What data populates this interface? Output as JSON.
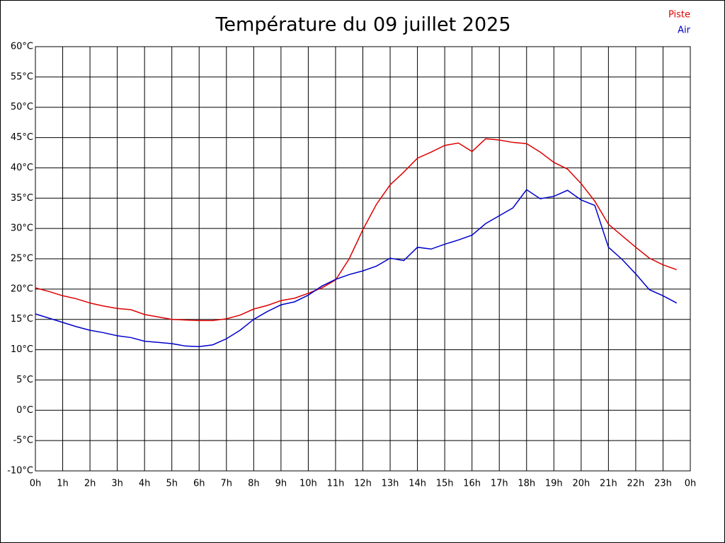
{
  "chart_data": {
    "type": "line",
    "title": "Température du 09 juillet 2025",
    "x": [
      0,
      0.5,
      1,
      1.5,
      2,
      2.5,
      3,
      3.5,
      4,
      4.5,
      5,
      5.5,
      6,
      6.5,
      7,
      7.5,
      8,
      8.5,
      9,
      9.5,
      10,
      10.5,
      11,
      11.5,
      12,
      12.5,
      13,
      13.5,
      14,
      14.5,
      15,
      15.5,
      16,
      16.5,
      17,
      17.5,
      18,
      18.5,
      19,
      19.5,
      20,
      20.5,
      21,
      21.5,
      22,
      22.5,
      23,
      23.5
    ],
    "series": [
      {
        "name": "Piste",
        "color": "#dd0000",
        "values": [
          20.2,
          19.6,
          18.9,
          18.4,
          17.7,
          17.2,
          16.8,
          16.6,
          15.8,
          15.4,
          15.0,
          14.9,
          14.8,
          14.8,
          15.1,
          15.7,
          16.7,
          17.3,
          18.1,
          18.5,
          19.3,
          20.2,
          21.5,
          25.0,
          29.8,
          34.0,
          37.2,
          39.3,
          41.6,
          42.6,
          43.7,
          44.1,
          42.7,
          44.8,
          44.6,
          44.2,
          44.0,
          42.6,
          40.9,
          39.8,
          37.4,
          34.5,
          30.7,
          28.8,
          26.9,
          25.1,
          24.0,
          23.2
        ]
      },
      {
        "name": "Air",
        "color": "#0000cc",
        "values": [
          15.9,
          15.2,
          14.5,
          13.8,
          13.2,
          12.8,
          12.3,
          12.0,
          11.4,
          11.2,
          11.0,
          10.6,
          10.5,
          10.8,
          11.8,
          13.2,
          15.0,
          16.3,
          17.4,
          17.9,
          19.0,
          20.5,
          21.6,
          22.4,
          23.0,
          23.8,
          25.1,
          24.7,
          26.9,
          26.6,
          27.4,
          28.1,
          28.9,
          30.8,
          32.1,
          33.4,
          36.4,
          34.9,
          35.3,
          36.3,
          34.7,
          33.8,
          26.9,
          24.9,
          22.5,
          19.9,
          18.9,
          17.7
        ]
      }
    ],
    "xlim": [
      0,
      24
    ],
    "xticks": [
      {
        "value": 0,
        "label": "0h"
      },
      {
        "value": 1,
        "label": "1h"
      },
      {
        "value": 2,
        "label": "2h"
      },
      {
        "value": 3,
        "label": "3h"
      },
      {
        "value": 4,
        "label": "4h"
      },
      {
        "value": 5,
        "label": "5h"
      },
      {
        "value": 6,
        "label": "6h"
      },
      {
        "value": 7,
        "label": "7h"
      },
      {
        "value": 8,
        "label": "8h"
      },
      {
        "value": 9,
        "label": "9h"
      },
      {
        "value": 10,
        "label": "10h"
      },
      {
        "value": 11,
        "label": "11h"
      },
      {
        "value": 12,
        "label": "12h"
      },
      {
        "value": 13,
        "label": "13h"
      },
      {
        "value": 14,
        "label": "14h"
      },
      {
        "value": 15,
        "label": "15h"
      },
      {
        "value": 16,
        "label": "16h"
      },
      {
        "value": 17,
        "label": "17h"
      },
      {
        "value": 18,
        "label": "18h"
      },
      {
        "value": 19,
        "label": "19h"
      },
      {
        "value": 20,
        "label": "20h"
      },
      {
        "value": 21,
        "label": "21h"
      },
      {
        "value": 22,
        "label": "22h"
      },
      {
        "value": 23,
        "label": "23h"
      },
      {
        "value": 24,
        "label": "0h"
      }
    ],
    "ylim": [
      -10,
      60
    ],
    "yticks": [
      {
        "value": 60,
        "label": "60°C"
      },
      {
        "value": 55,
        "label": "55°C"
      },
      {
        "value": 50,
        "label": "50°C"
      },
      {
        "value": 45,
        "label": "45°C"
      },
      {
        "value": 40,
        "label": "40°C"
      },
      {
        "value": 35,
        "label": "35°C"
      },
      {
        "value": 30,
        "label": "30°C"
      },
      {
        "value": 25,
        "label": "25°C"
      },
      {
        "value": 20,
        "label": "20°C"
      },
      {
        "value": 15,
        "label": "15°C"
      },
      {
        "value": 10,
        "label": "10°C"
      },
      {
        "value": 5,
        "label": "5°C"
      },
      {
        "value": 0,
        "label": "0°C"
      },
      {
        "value": -5,
        "label": "-5°C"
      },
      {
        "value": -10,
        "label": "-10°C"
      }
    ],
    "grid": true,
    "legend": "top-right"
  }
}
